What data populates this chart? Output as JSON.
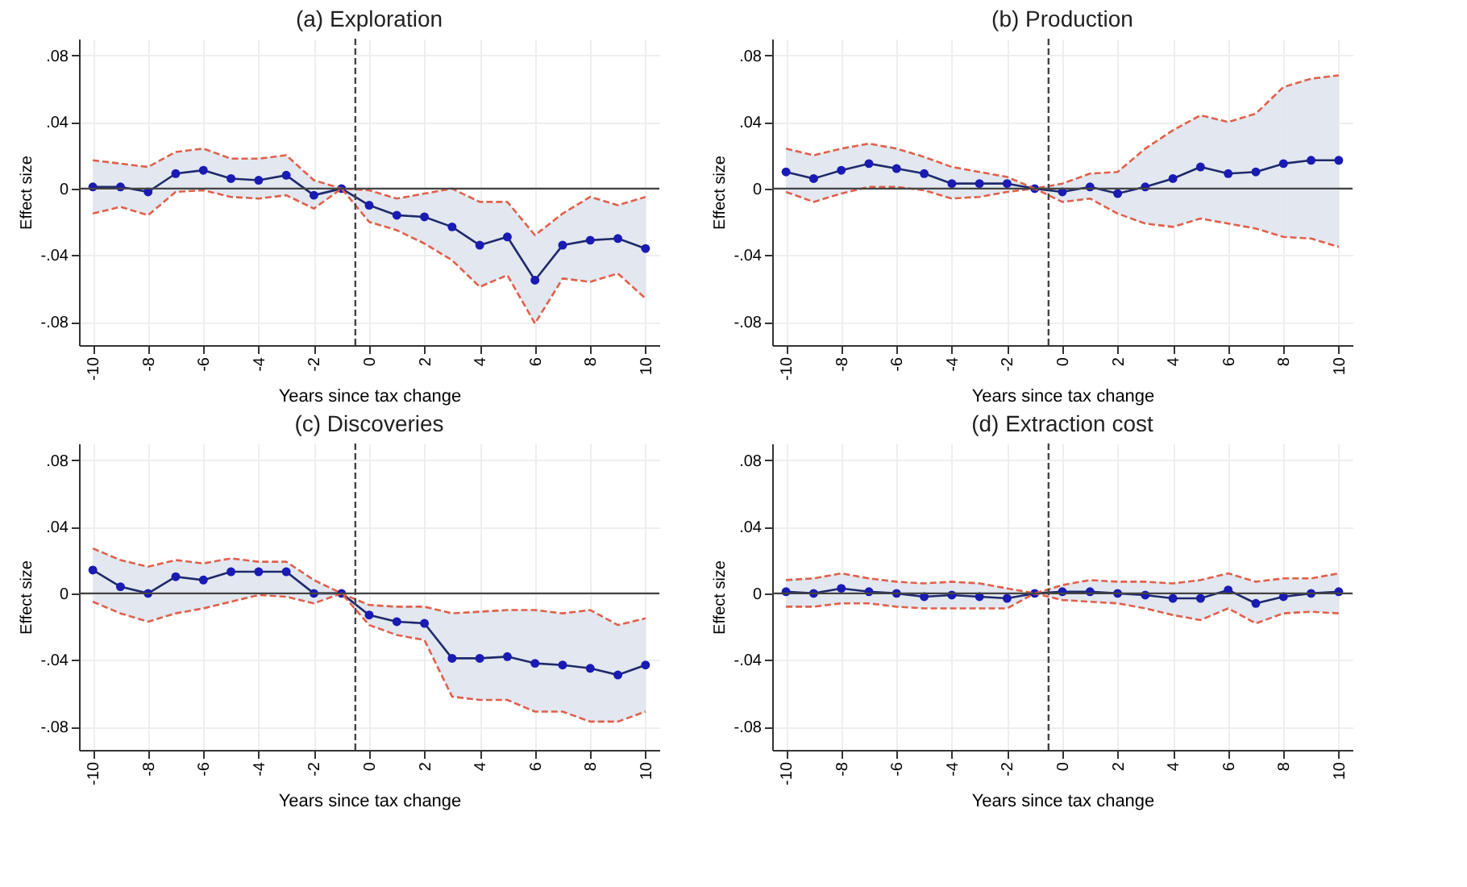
{
  "chart_data": [
    {
      "type": "line",
      "title": "(a) Exploration",
      "xlabel": "Years since tax change",
      "ylabel": "Effect size",
      "marker": "circle",
      "grid": true,
      "x": [
        -10,
        -9,
        -8,
        -7,
        -6,
        -5,
        -4,
        -3,
        -2,
        -1,
        0,
        1,
        2,
        3,
        4,
        5,
        6,
        7,
        8,
        9,
        10
      ],
      "xlim": [
        -10.5,
        10.5
      ],
      "xticks": [
        -10,
        -8,
        -6,
        -4,
        -2,
        0,
        2,
        4,
        6,
        8,
        10
      ],
      "ylim": [
        -0.094,
        0.09
      ],
      "yticks": [
        {
          "value": -0.08,
          "label": "-.08"
        },
        {
          "value": -0.04,
          "label": "-.04"
        },
        {
          "value": 0,
          "label": "0"
        },
        {
          "value": 0.04,
          "label": ".04"
        },
        {
          "value": 0.08,
          "label": ".08"
        }
      ],
      "ref_lines": [
        {
          "axis": "y",
          "value": 0,
          "color": "#444444",
          "line_style": "solid"
        },
        {
          "axis": "x",
          "value": -0.5,
          "color": "#444444",
          "line_style": "dashed"
        }
      ],
      "series": [
        {
          "color": "#1a1ab4",
          "values": [
            0.001,
            0.001,
            -0.002,
            0.009,
            0.011,
            0.006,
            0.005,
            0.008,
            -0.004,
            0,
            -0.01,
            -0.016,
            -0.017,
            -0.023,
            -0.034,
            -0.029,
            -0.055,
            -0.034,
            -0.031,
            -0.03,
            -0.036
          ],
          "lower": [
            -0.015,
            -0.011,
            -0.016,
            -0.002,
            -0.001,
            -0.005,
            -0.006,
            -0.004,
            -0.012,
            0,
            -0.02,
            -0.025,
            -0.033,
            -0.043,
            -0.059,
            -0.052,
            -0.081,
            -0.054,
            -0.056,
            -0.051,
            -0.066
          ],
          "upper": [
            0.017,
            0.015,
            0.013,
            0.022,
            0.024,
            0.018,
            0.018,
            0.02,
            0.005,
            0,
            -0.001,
            -0.006,
            -0.003,
            0,
            -0.008,
            -0.008,
            -0.028,
            -0.015,
            -0.005,
            -0.01,
            -0.005
          ]
        },
        {
          "color": "#e0604a",
          "line_style": "dashed",
          "marker": "none",
          "values": [
            -0.015,
            -0.011,
            -0.016,
            -0.002,
            -0.001,
            -0.005,
            -0.006,
            -0.004,
            -0.012,
            0,
            -0.02,
            -0.025,
            -0.033,
            -0.043,
            -0.059,
            -0.052,
            -0.081,
            -0.054,
            -0.056,
            -0.051,
            -0.066
          ]
        },
        {
          "color": "#e0604a",
          "line_style": "dashed",
          "marker": "none",
          "values": [
            0.017,
            0.015,
            0.013,
            0.022,
            0.024,
            0.018,
            0.018,
            0.02,
            0.005,
            0,
            -0.001,
            -0.006,
            -0.003,
            0,
            -0.008,
            -0.008,
            -0.028,
            -0.015,
            -0.005,
            -0.01,
            -0.005
          ]
        }
      ]
    },
    {
      "type": "line",
      "title": "(b) Production",
      "xlabel": "Years since tax change",
      "ylabel": "Effect size",
      "marker": "circle",
      "grid": true,
      "x": [
        -10,
        -9,
        -8,
        -7,
        -6,
        -5,
        -4,
        -3,
        -2,
        -1,
        0,
        1,
        2,
        3,
        4,
        5,
        6,
        7,
        8,
        9,
        10
      ],
      "xlim": [
        -10.5,
        10.5
      ],
      "xticks": [
        -10,
        -8,
        -6,
        -4,
        -2,
        0,
        2,
        4,
        6,
        8,
        10
      ],
      "ylim": [
        -0.094,
        0.09
      ],
      "yticks": [
        {
          "value": -0.08,
          "label": "-.08"
        },
        {
          "value": -0.04,
          "label": "-.04"
        },
        {
          "value": 0,
          "label": "0"
        },
        {
          "value": 0.04,
          "label": ".04"
        },
        {
          "value": 0.08,
          "label": ".08"
        }
      ],
      "ref_lines": [
        {
          "axis": "y",
          "value": 0,
          "color": "#444444",
          "line_style": "solid"
        },
        {
          "axis": "x",
          "value": -0.5,
          "color": "#444444",
          "line_style": "dashed"
        }
      ],
      "series": [
        {
          "color": "#1a1ab4",
          "values": [
            0.01,
            0.006,
            0.011,
            0.015,
            0.012,
            0.009,
            0.003,
            0.003,
            0.003,
            0,
            -0.002,
            0.001,
            -0.003,
            0.001,
            0.006,
            0.013,
            0.009,
            0.01,
            0.015,
            0.017,
            0.017
          ],
          "lower": [
            -0.002,
            -0.008,
            -0.003,
            0.001,
            0.001,
            -0.001,
            -0.006,
            -0.005,
            -0.002,
            0,
            -0.008,
            -0.006,
            -0.015,
            -0.021,
            -0.023,
            -0.018,
            -0.021,
            -0.024,
            -0.029,
            -0.03,
            -0.035
          ],
          "upper": [
            0.024,
            0.02,
            0.024,
            0.027,
            0.024,
            0.019,
            0.013,
            0.01,
            0.007,
            0,
            0.003,
            0.009,
            0.01,
            0.024,
            0.035,
            0.044,
            0.04,
            0.045,
            0.061,
            0.066,
            0.068
          ]
        },
        {
          "color": "#e0604a",
          "line_style": "dashed",
          "marker": "none",
          "values": [
            -0.002,
            -0.008,
            -0.003,
            0.001,
            0.001,
            -0.001,
            -0.006,
            -0.005,
            -0.002,
            0,
            -0.008,
            -0.006,
            -0.015,
            -0.021,
            -0.023,
            -0.018,
            -0.021,
            -0.024,
            -0.029,
            -0.03,
            -0.035
          ]
        },
        {
          "color": "#e0604a",
          "line_style": "dashed",
          "marker": "none",
          "values": [
            0.024,
            0.02,
            0.024,
            0.027,
            0.024,
            0.019,
            0.013,
            0.01,
            0.007,
            0,
            0.003,
            0.009,
            0.01,
            0.024,
            0.035,
            0.044,
            0.04,
            0.045,
            0.061,
            0.066,
            0.068
          ]
        }
      ]
    },
    {
      "type": "line",
      "title": "(c) Discoveries",
      "xlabel": "Years since tax change",
      "ylabel": "Effect size",
      "marker": "circle",
      "grid": true,
      "x": [
        -10,
        -9,
        -8,
        -7,
        -6,
        -5,
        -4,
        -3,
        -2,
        -1,
        0,
        1,
        2,
        3,
        4,
        5,
        6,
        7,
        8,
        9,
        10
      ],
      "xlim": [
        -10.5,
        10.5
      ],
      "xticks": [
        -10,
        -8,
        -6,
        -4,
        -2,
        0,
        2,
        4,
        6,
        8,
        10
      ],
      "ylim": [
        -0.094,
        0.09
      ],
      "yticks": [
        {
          "value": -0.08,
          "label": "-.08"
        },
        {
          "value": -0.04,
          "label": "-.04"
        },
        {
          "value": 0,
          "label": "0"
        },
        {
          "value": 0.04,
          "label": ".04"
        },
        {
          "value": 0.08,
          "label": ".08"
        }
      ],
      "ref_lines": [
        {
          "axis": "y",
          "value": 0,
          "color": "#444444",
          "line_style": "solid"
        },
        {
          "axis": "x",
          "value": -0.5,
          "color": "#444444",
          "line_style": "dashed"
        }
      ],
      "series": [
        {
          "color": "#1a1ab4",
          "values": [
            0.014,
            0.004,
            0,
            0.01,
            0.008,
            0.013,
            0.013,
            0.013,
            0,
            0,
            -0.013,
            -0.017,
            -0.018,
            -0.039,
            -0.039,
            -0.038,
            -0.042,
            -0.043,
            -0.045,
            -0.049,
            -0.043
          ],
          "lower": [
            -0.005,
            -0.012,
            -0.017,
            -0.012,
            -0.009,
            -0.005,
            -0.001,
            -0.002,
            -0.006,
            0,
            -0.019,
            -0.025,
            -0.028,
            -0.062,
            -0.064,
            -0.064,
            -0.071,
            -0.071,
            -0.077,
            -0.077,
            -0.071
          ],
          "upper": [
            0.027,
            0.02,
            0.016,
            0.02,
            0.018,
            0.021,
            0.019,
            0.019,
            0.008,
            0,
            -0.007,
            -0.008,
            -0.008,
            -0.012,
            -0.011,
            -0.01,
            -0.01,
            -0.012,
            -0.01,
            -0.019,
            -0.015
          ]
        },
        {
          "color": "#e0604a",
          "line_style": "dashed",
          "marker": "none",
          "values": [
            -0.005,
            -0.012,
            -0.017,
            -0.012,
            -0.009,
            -0.005,
            -0.001,
            -0.002,
            -0.006,
            0,
            -0.019,
            -0.025,
            -0.028,
            -0.062,
            -0.064,
            -0.064,
            -0.071,
            -0.071,
            -0.077,
            -0.077,
            -0.071
          ]
        },
        {
          "color": "#e0604a",
          "line_style": "dashed",
          "marker": "none",
          "values": [
            0.027,
            0.02,
            0.016,
            0.02,
            0.018,
            0.021,
            0.019,
            0.019,
            0.008,
            0,
            -0.007,
            -0.008,
            -0.008,
            -0.012,
            -0.011,
            -0.01,
            -0.01,
            -0.012,
            -0.01,
            -0.019,
            -0.015
          ]
        }
      ]
    },
    {
      "type": "line",
      "title": "(d) Extraction cost",
      "xlabel": "Years since tax change",
      "ylabel": "Effect size",
      "marker": "circle",
      "grid": true,
      "x": [
        -10,
        -9,
        -8,
        -7,
        -6,
        -5,
        -4,
        -3,
        -2,
        -1,
        0,
        1,
        2,
        3,
        4,
        5,
        6,
        7,
        8,
        9,
        10
      ],
      "xlim": [
        -10.5,
        10.5
      ],
      "xticks": [
        -10,
        -8,
        -6,
        -4,
        -2,
        0,
        2,
        4,
        6,
        8,
        10
      ],
      "ylim": [
        -0.094,
        0.09
      ],
      "yticks": [
        {
          "value": -0.08,
          "label": "-.08"
        },
        {
          "value": -0.04,
          "label": "-.04"
        },
        {
          "value": 0,
          "label": "0"
        },
        {
          "value": 0.04,
          "label": ".04"
        },
        {
          "value": 0.08,
          "label": ".08"
        }
      ],
      "ref_lines": [
        {
          "axis": "y",
          "value": 0,
          "color": "#444444",
          "line_style": "solid"
        },
        {
          "axis": "x",
          "value": -0.5,
          "color": "#444444",
          "line_style": "dashed"
        }
      ],
      "series": [
        {
          "color": "#1a1ab4",
          "values": [
            0.001,
            0,
            0.003,
            0.001,
            0,
            -0.002,
            -0.001,
            -0.002,
            -0.003,
            0,
            0.001,
            0.001,
            0,
            -0.001,
            -0.003,
            -0.003,
            0.002,
            -0.006,
            -0.002,
            0,
            0.001
          ],
          "lower": [
            -0.008,
            -0.008,
            -0.006,
            -0.006,
            -0.008,
            -0.009,
            -0.009,
            -0.009,
            -0.009,
            0,
            -0.004,
            -0.005,
            -0.006,
            -0.009,
            -0.013,
            -0.016,
            -0.009,
            -0.018,
            -0.012,
            -0.011,
            -0.012
          ],
          "upper": [
            0.008,
            0.009,
            0.012,
            0.009,
            0.007,
            0.006,
            0.007,
            0.006,
            0.003,
            0,
            0.005,
            0.008,
            0.007,
            0.007,
            0.006,
            0.008,
            0.012,
            0.007,
            0.009,
            0.009,
            0.012
          ]
        },
        {
          "color": "#e0604a",
          "line_style": "dashed",
          "marker": "none",
          "values": [
            -0.008,
            -0.008,
            -0.006,
            -0.006,
            -0.008,
            -0.009,
            -0.009,
            -0.009,
            -0.009,
            0,
            -0.004,
            -0.005,
            -0.006,
            -0.009,
            -0.013,
            -0.016,
            -0.009,
            -0.018,
            -0.012,
            -0.011,
            -0.012
          ]
        },
        {
          "color": "#e0604a",
          "line_style": "dashed",
          "marker": "none",
          "values": [
            0.008,
            0.009,
            0.012,
            0.009,
            0.007,
            0.006,
            0.007,
            0.006,
            0.003,
            0,
            0.005,
            0.008,
            0.007,
            0.007,
            0.006,
            0.008,
            0.012,
            0.007,
            0.009,
            0.009,
            0.012
          ]
        }
      ]
    }
  ]
}
